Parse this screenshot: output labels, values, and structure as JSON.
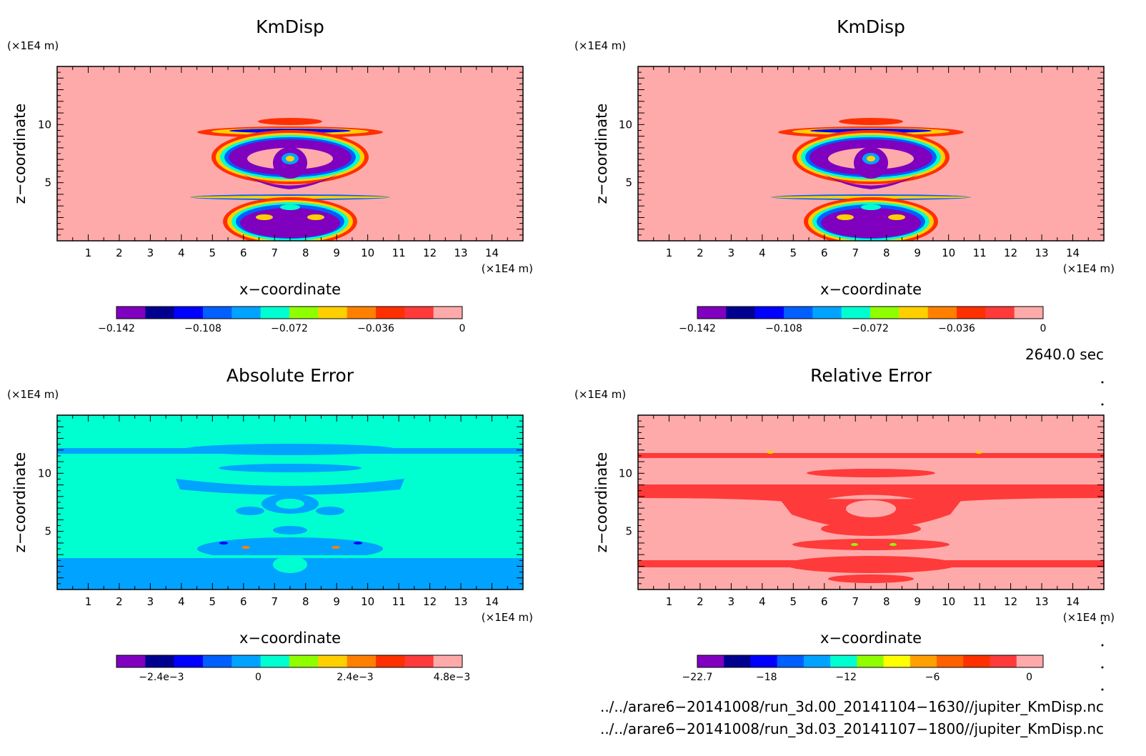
{
  "chart_data": [
    {
      "type": "heatmap",
      "title": "KmDisp",
      "xlabel": "x−coordinate",
      "ylabel": "z−coordinate",
      "x_unit": "(×1E4 m)",
      "y_unit": "(×1E4 m)",
      "xlim": [
        0,
        15
      ],
      "ylim": [
        0,
        15
      ],
      "x_ticks": [
        "1",
        "2",
        "3",
        "4",
        "5",
        "6",
        "7",
        "8",
        "9",
        "10",
        "11",
        "12",
        "13",
        "14"
      ],
      "y_ticks": [
        "5",
        "10"
      ],
      "colorbar": {
        "ticks": [
          "−0.142",
          "−0.108",
          "−0.072",
          "−0.036",
          "0"
        ],
        "colors": [
          "#7f00bf",
          "#00008f",
          "#0000ff",
          "#005fff",
          "#00a3ff",
          "#00ffd0",
          "#8fff00",
          "#ffd000",
          "#ff8000",
          "#ff3000",
          "#ff3a3a",
          "#ffaaaa"
        ]
      },
      "field": "symmetric plume structure centred at x≈7.5"
    },
    {
      "type": "heatmap",
      "title": "KmDisp",
      "xlabel": "x−coordinate",
      "ylabel": "z−coordinate",
      "x_unit": "(×1E4 m)",
      "y_unit": "(×1E4 m)",
      "xlim": [
        0,
        15
      ],
      "ylim": [
        0,
        15
      ],
      "x_ticks": [
        "1",
        "2",
        "3",
        "4",
        "5",
        "6",
        "7",
        "8",
        "9",
        "10",
        "11",
        "12",
        "13",
        "14"
      ],
      "y_ticks": [
        "5",
        "10"
      ],
      "colorbar": {
        "ticks": [
          "−0.142",
          "−0.108",
          "−0.072",
          "−0.036",
          "0"
        ],
        "colors": [
          "#7f00bf",
          "#00008f",
          "#0000ff",
          "#005fff",
          "#00a3ff",
          "#00ffd0",
          "#8fff00",
          "#ffd000",
          "#ff8000",
          "#ff3000",
          "#ff3a3a",
          "#ffaaaa"
        ]
      }
    },
    {
      "type": "heatmap",
      "title": "Absolute Error",
      "xlabel": "x−coordinate",
      "ylabel": "z−coordinate",
      "x_unit": "(×1E4 m)",
      "y_unit": "(×1E4 m)",
      "xlim": [
        0,
        15
      ],
      "ylim": [
        0,
        15
      ],
      "x_ticks": [
        "1",
        "2",
        "3",
        "4",
        "5",
        "6",
        "7",
        "8",
        "9",
        "10",
        "11",
        "12",
        "13",
        "14"
      ],
      "y_ticks": [
        "5",
        "10"
      ],
      "colorbar": {
        "ticks": [
          "−2.4e−3",
          "0",
          "2.4e−3",
          "4.8e−3"
        ],
        "colors": [
          "#7f00bf",
          "#00008f",
          "#0000ff",
          "#005fff",
          "#00a3ff",
          "#00ffd0",
          "#8fff00",
          "#ffd000",
          "#ff8000",
          "#ff3000",
          "#ff3a3a",
          "#ffaaaa"
        ]
      }
    },
    {
      "type": "heatmap",
      "title": "Relative Error",
      "xlabel": "x−coordinate",
      "ylabel": "z−coordinate",
      "x_unit": "(×1E4 m)",
      "y_unit": "(×1E4 m)",
      "xlim": [
        0,
        15
      ],
      "ylim": [
        0,
        15
      ],
      "x_ticks": [
        "1",
        "2",
        "3",
        "4",
        "5",
        "6",
        "7",
        "8",
        "9",
        "10",
        "11",
        "12",
        "13",
        "14"
      ],
      "y_ticks": [
        "5",
        "10"
      ],
      "colorbar": {
        "ticks": [
          "−22.7",
          "−18",
          "−12",
          "−6",
          "0"
        ],
        "colors": [
          "#7f00bf",
          "#00008f",
          "#0000ff",
          "#005fff",
          "#00a3ff",
          "#00ffd0",
          "#8fff00",
          "#ffff00",
          "#ffa000",
          "#ff6000",
          "#ff3000",
          "#ff3a3a",
          "#ffaaaa"
        ]
      }
    }
  ],
  "time_label": "2640.0 sec",
  "files": [
    "../../arare6−20141008/run_3d.00_20141104−1630//jupiter_KmDisp.nc",
    "../../arare6−20141008/run_3d.03_20141107−1800//jupiter_KmDisp.nc"
  ],
  "colors": {
    "bg_pink": "#ffaaaa",
    "bg_cyan": "#00ffd0",
    "abs_blue": "#00a3ff",
    "rel_red": "#ff3a3a"
  }
}
